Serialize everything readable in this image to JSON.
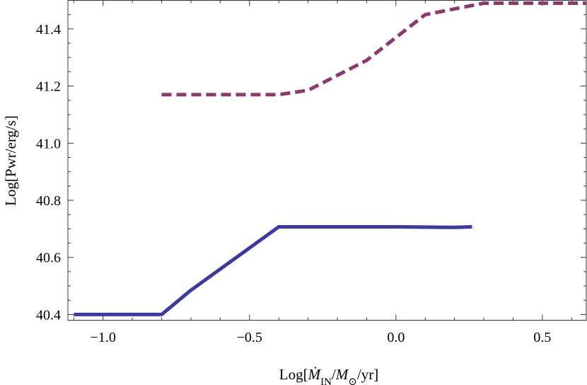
{
  "chart_data": {
    "type": "line",
    "title": "",
    "xlabel": "Log[Ṁ_IN/M_⊙/yr]",
    "ylabel": "Log[Pwr/erg/s]",
    "xlim": [
      -1.12,
      0.65
    ],
    "ylim": [
      40.38,
      41.5
    ],
    "xticks": [
      -1.0,
      -0.5,
      0.0,
      0.5
    ],
    "xtick_labels": [
      "−1.0",
      "−0.5",
      "0.0",
      "0.5"
    ],
    "yticks": [
      40.4,
      40.6,
      40.8,
      41.0,
      41.2,
      41.4
    ],
    "ytick_labels": [
      "40.4",
      "40.6",
      "40.8",
      "41.0",
      "41.2",
      "41.4"
    ],
    "grid": false,
    "series": [
      {
        "color": "#3b3b9c",
        "style": "solid",
        "x": [
          -1.1,
          -0.8,
          -0.7,
          -0.4,
          0.0,
          0.2,
          0.26
        ],
        "y": [
          40.4,
          40.4,
          40.485,
          40.707,
          40.707,
          40.705,
          40.707
        ]
      },
      {
        "color": "#8a3a6e",
        "style": "dashed",
        "x": [
          -0.8,
          -0.4,
          -0.3,
          -0.1,
          0.0,
          0.1,
          0.3,
          0.65
        ],
        "y": [
          41.17,
          41.17,
          41.185,
          41.29,
          41.37,
          41.45,
          41.49,
          41.49
        ]
      }
    ]
  }
}
